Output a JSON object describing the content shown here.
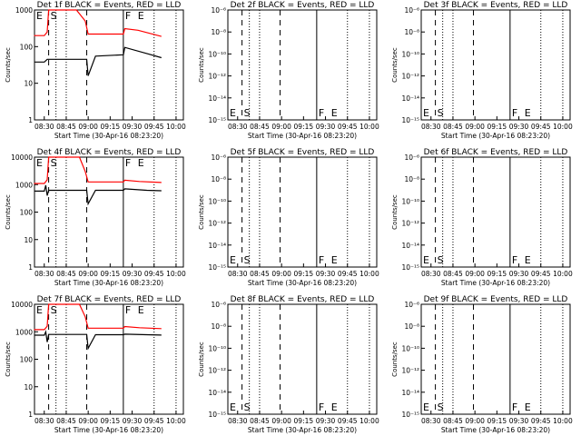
{
  "time_axis": {
    "tick_labels": [
      "08:30",
      "08:45",
      "09:00",
      "09:15",
      "09:30",
      "09:45",
      "10:00"
    ],
    "xlabel": "Start Time (30-Apr-16 08:23:20)"
  },
  "ylabel": "Counts/sec",
  "event_labels": {
    "E": "E",
    "S": "S",
    "F": "F"
  },
  "series_colors": {
    "events": "#000000",
    "lld": "#ff0000"
  },
  "chart_data": [
    {
      "type": "line",
      "title": "Det 1f BLACK = Events, RED = LLD",
      "y_scale": "log",
      "ylim": [
        1,
        1000
      ],
      "y_ticks": [
        "1000",
        "100",
        "10",
        "1"
      ],
      "event_markers": {
        "E": "08:25",
        "S": "08:33",
        "F": "09:24",
        "E2": "09:32"
      },
      "series": [
        {
          "color": "#ff0000",
          "x": [
            "08:23",
            "08:30",
            "08:32",
            "08:33",
            "08:36",
            "08:52",
            "08:58",
            "09:00",
            "09:24",
            "09:25",
            "09:34",
            "09:50"
          ],
          "values": [
            200,
            200,
            250,
            1000,
            1000,
            1000,
            500,
            220,
            220,
            310,
            280,
            190
          ]
        },
        {
          "color": "#000000",
          "x": [
            "08:23",
            "08:30",
            "08:32",
            "08:59",
            "09:00",
            "09:05",
            "09:24",
            "09:25",
            "09:40",
            "09:50"
          ],
          "values": [
            38,
            38,
            45,
            45,
            16,
            55,
            60,
            95,
            65,
            50
          ]
        }
      ]
    },
    {
      "type": "line",
      "title": "Det 2f BLACK = Events, RED = LLD",
      "y_scale": "log",
      "ylim": [
        1e-06,
        1e-15
      ],
      "y_ticks": [
        "10⁻⁶",
        "10⁻⁸",
        "10⁻¹⁰",
        "10⁻¹²",
        "10⁻¹⁴",
        "10⁻¹⁵"
      ],
      "event_markers": {
        "E": "08:25",
        "S": "08:33",
        "F": "09:24",
        "E2": "09:32"
      },
      "series": []
    },
    {
      "type": "line",
      "title": "Det 3f BLACK = Events, RED = LLD",
      "y_scale": "log",
      "ylim": [
        1e-06,
        1e-15
      ],
      "y_ticks": [
        "10⁻⁶",
        "10⁻⁸",
        "10⁻¹⁰",
        "10⁻¹²",
        "10⁻¹⁴",
        "10⁻¹⁵"
      ],
      "event_markers": {
        "E": "08:25",
        "S": "08:33",
        "F": "09:24",
        "E2": "09:32"
      },
      "series": []
    },
    {
      "type": "line",
      "title": "Det 4f BLACK = Events, RED = LLD",
      "y_scale": "log",
      "ylim": [
        1,
        10000
      ],
      "y_ticks": [
        "10000",
        "1000",
        "100",
        "10",
        "1"
      ],
      "event_markers": {
        "E": "08:25",
        "S": "08:33",
        "F": "09:24",
        "E2": "09:32"
      },
      "series": [
        {
          "color": "#ff0000",
          "x": [
            "08:23",
            "08:30",
            "08:32",
            "08:33",
            "08:36",
            "08:54",
            "08:58",
            "09:00",
            "09:24",
            "09:25",
            "09:35",
            "09:50"
          ],
          "values": [
            1100,
            1100,
            1500,
            10000,
            10000,
            10000,
            3000,
            1250,
            1250,
            1450,
            1300,
            1200
          ]
        },
        {
          "color": "#000000",
          "x": [
            "08:23",
            "08:30",
            "08:31",
            "08:32",
            "08:33",
            "08:59",
            "09:00",
            "09:05",
            "09:24",
            "09:25",
            "09:40",
            "09:50"
          ],
          "values": [
            580,
            580,
            950,
            400,
            620,
            620,
            200,
            620,
            620,
            700,
            620,
            600
          ]
        }
      ]
    },
    {
      "type": "line",
      "title": "Det 5f BLACK = Events, RED = LLD",
      "y_scale": "log",
      "ylim": [
        1e-06,
        1e-15
      ],
      "y_ticks": [
        "10⁻⁶",
        "10⁻⁸",
        "10⁻¹⁰",
        "10⁻¹²",
        "10⁻¹⁴",
        "10⁻¹⁵"
      ],
      "event_markers": {
        "E": "08:25",
        "S": "08:33",
        "F": "09:24",
        "E2": "09:32"
      },
      "series": []
    },
    {
      "type": "line",
      "title": "Det 6f BLACK = Events, RED = LLD",
      "y_scale": "log",
      "ylim": [
        1e-06,
        1e-15
      ],
      "y_ticks": [
        "10⁻⁶",
        "10⁻⁸",
        "10⁻¹⁰",
        "10⁻¹²",
        "10⁻¹⁴",
        "10⁻¹⁵"
      ],
      "event_markers": {
        "E": "08:25",
        "S": "08:33",
        "F": "09:24",
        "E2": "09:32"
      },
      "series": []
    },
    {
      "type": "line",
      "title": "Det 7f BLACK = Events, RED = LLD",
      "y_scale": "log",
      "ylim": [
        1,
        10000
      ],
      "y_ticks": [
        "10000",
        "1000",
        "100",
        "10",
        "1"
      ],
      "event_markers": {
        "E": "08:25",
        "S": "08:33",
        "F": "09:24",
        "E2": "09:32"
      },
      "series": [
        {
          "color": "#ff0000",
          "x": [
            "08:23",
            "08:30",
            "08:32",
            "08:33",
            "08:36",
            "08:54",
            "08:58",
            "09:00",
            "09:24",
            "09:25",
            "09:35",
            "09:50"
          ],
          "values": [
            1200,
            1200,
            1600,
            10000,
            10000,
            10000,
            3500,
            1350,
            1350,
            1550,
            1400,
            1300
          ]
        },
        {
          "color": "#000000",
          "x": [
            "08:23",
            "08:30",
            "08:31",
            "08:32",
            "08:33",
            "08:59",
            "09:00",
            "09:05",
            "09:24",
            "09:25",
            "09:40",
            "09:50"
          ],
          "values": [
            750,
            750,
            1000,
            420,
            800,
            800,
            250,
            780,
            780,
            820,
            780,
            760
          ]
        }
      ]
    },
    {
      "type": "line",
      "title": "Det 8f BLACK = Events, RED = LLD",
      "y_scale": "log",
      "ylim": [
        1e-06,
        1e-15
      ],
      "y_ticks": [
        "10⁻⁶",
        "10⁻⁸",
        "10⁻¹⁰",
        "10⁻¹²",
        "10⁻¹⁴",
        "10⁻¹⁵"
      ],
      "event_markers": {
        "E": "08:25",
        "S": "08:33",
        "F": "09:24",
        "E2": "09:32"
      },
      "series": []
    },
    {
      "type": "line",
      "title": "Det 9f BLACK = Events, RED = LLD",
      "y_scale": "log",
      "ylim": [
        1e-06,
        1e-15
      ],
      "y_ticks": [
        "10⁻⁶",
        "10⁻⁸",
        "10⁻¹⁰",
        "10⁻¹²",
        "10⁻¹⁴",
        "10⁻¹⁵"
      ],
      "event_markers": {
        "E": "08:25",
        "S": "08:33",
        "F": "09:24",
        "E2": "09:32"
      },
      "series": []
    }
  ]
}
